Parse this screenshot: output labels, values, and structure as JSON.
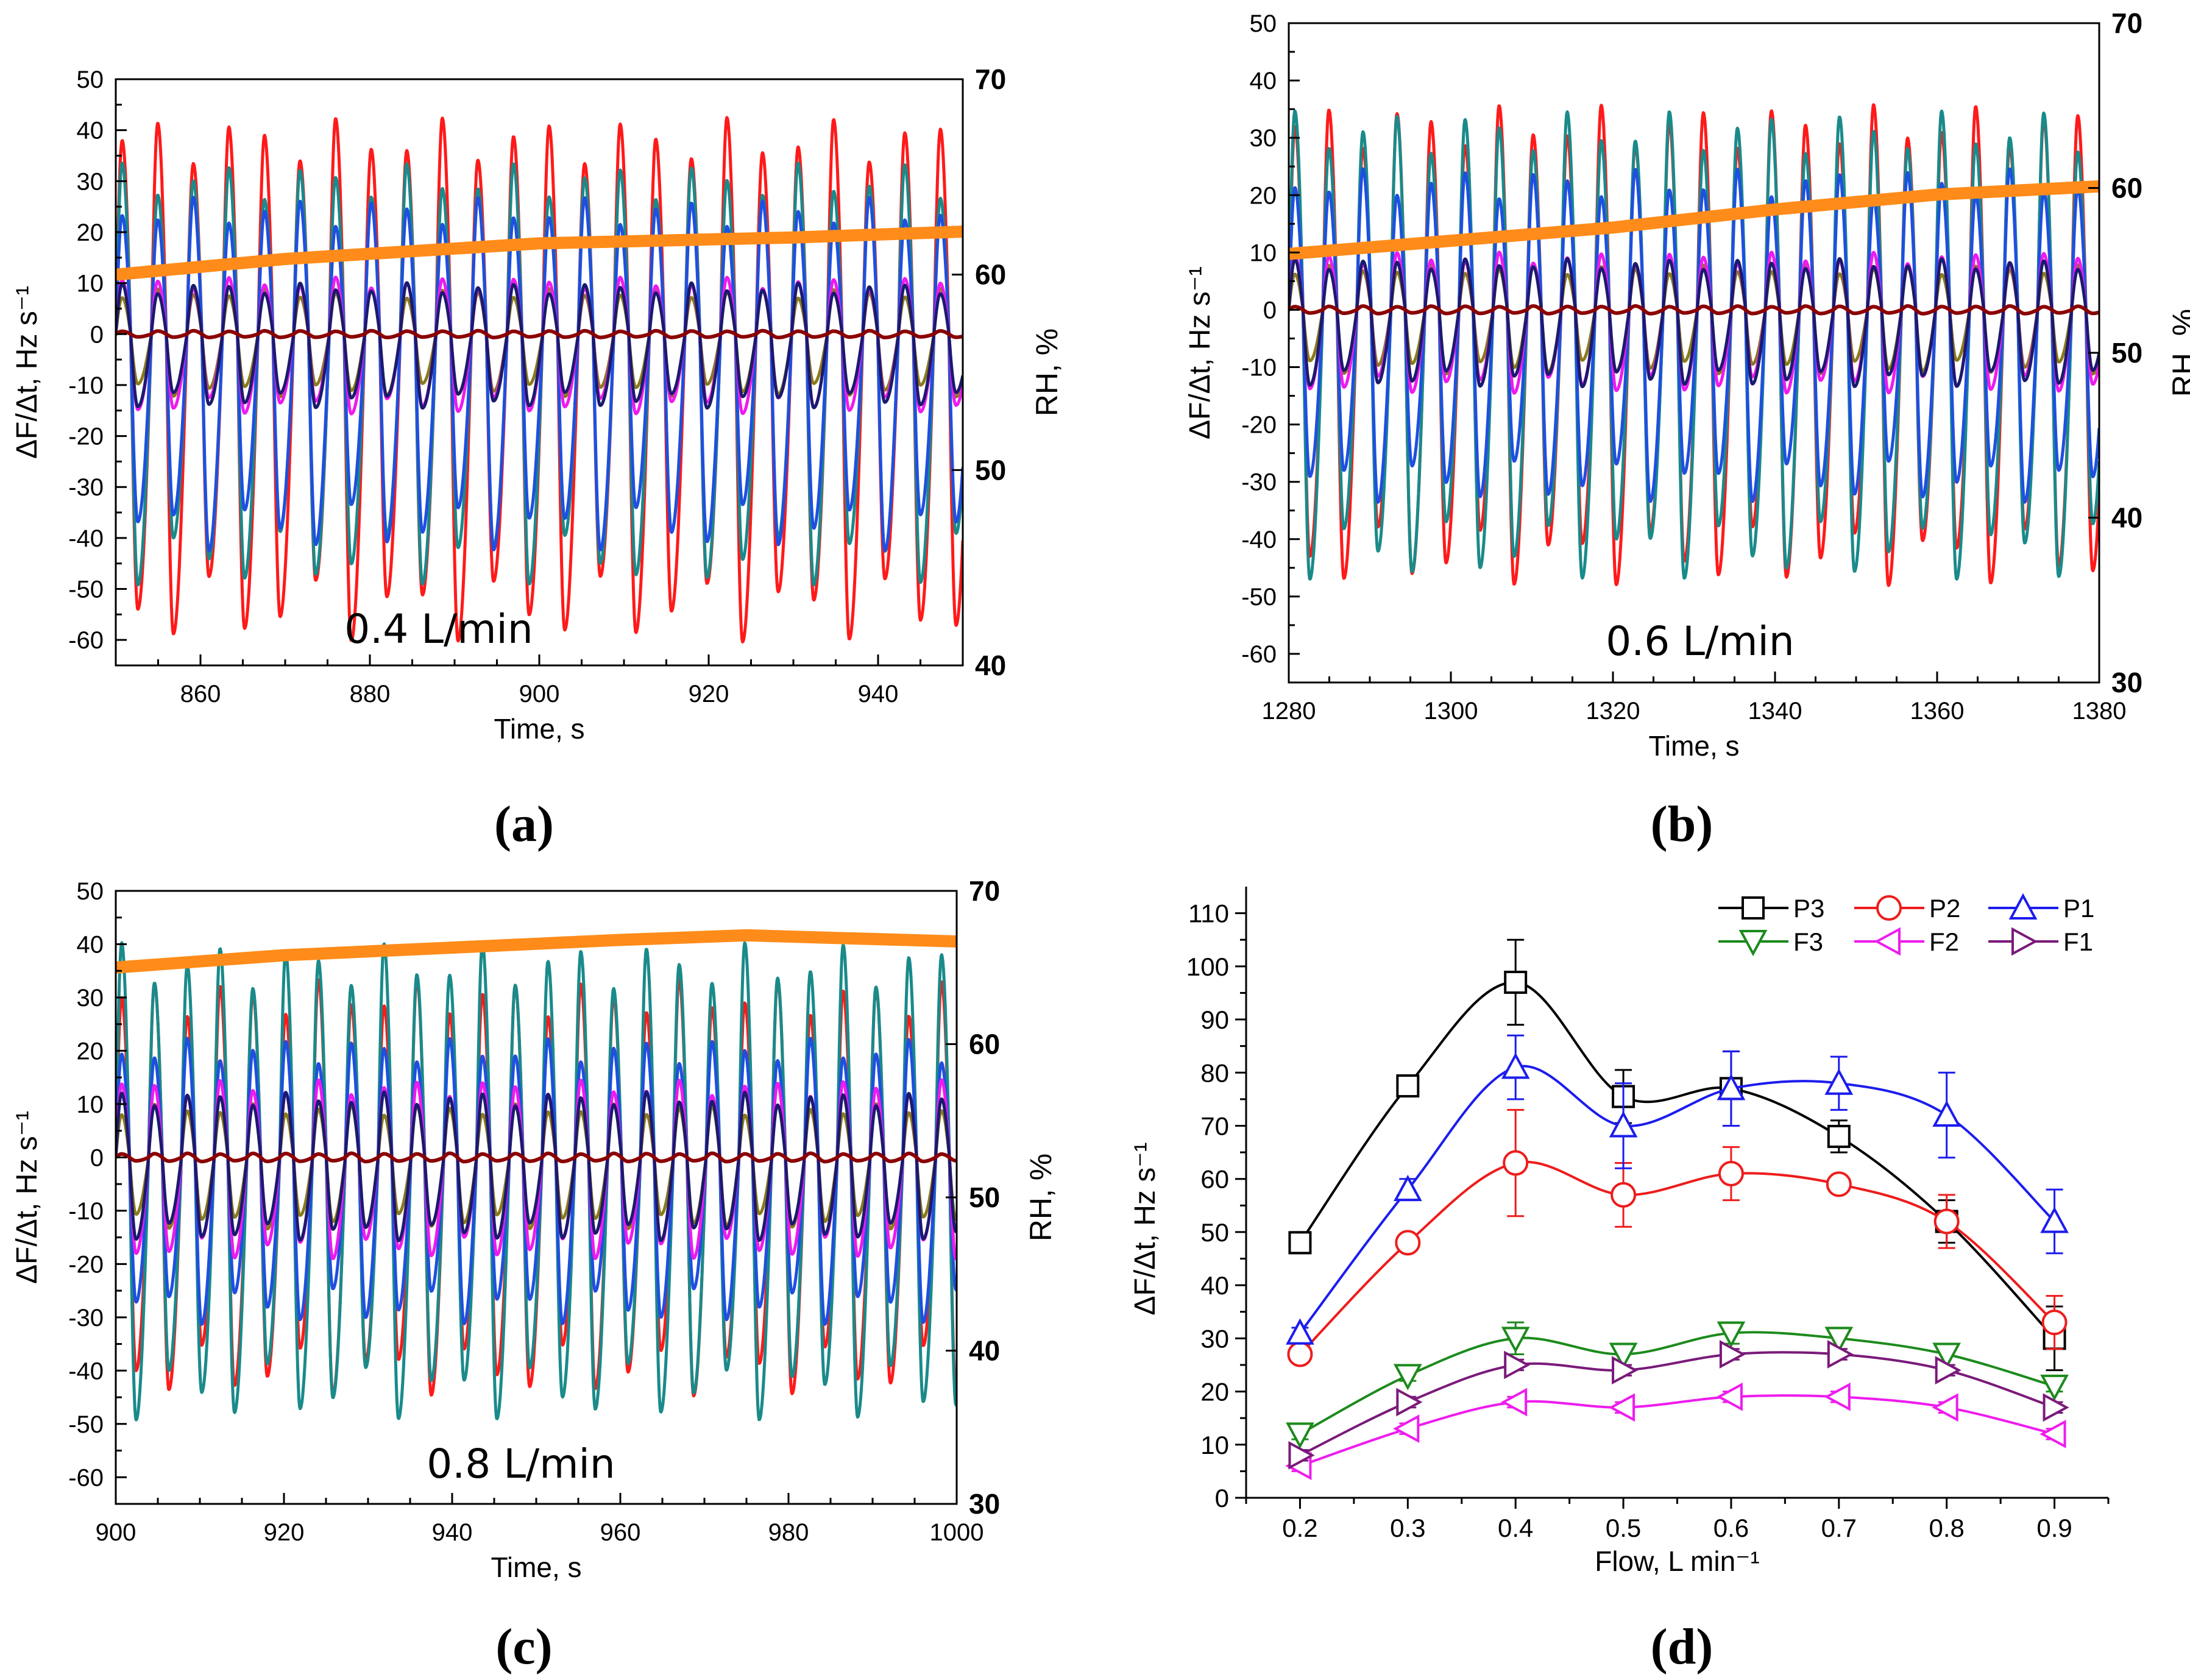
{
  "chart_data": [
    {
      "panel": "a",
      "type": "line",
      "panel_label": "(a)",
      "annotation": "0.4 L/min",
      "xlabel": "Time, s",
      "ylabel": "ΔF/Δt, Hz s⁻¹",
      "y2label": "RH, %",
      "xlim": [
        850,
        950
      ],
      "ylim": [
        -65,
        50
      ],
      "y2lim": [
        40,
        70
      ],
      "xticks": [
        "860",
        "880",
        "900",
        "920",
        "940"
      ],
      "yticks": [
        "50",
        "40",
        "30",
        "20",
        "10",
        "0",
        "-10",
        "-20",
        "-30",
        "-40",
        "-50",
        "-60"
      ],
      "y2ticks": [
        "70",
        "60",
        "50",
        "40"
      ],
      "oscillation_period_s": 4.2,
      "series": [
        {
          "name": "red",
          "color": "#ff1a1a",
          "peak": 38,
          "trough": -54
        },
        {
          "name": "teal",
          "color": "#1a8a8a",
          "peak": 30,
          "trough": -44
        },
        {
          "name": "blue",
          "color": "#1f4fe0",
          "peak": 24,
          "trough": -38
        },
        {
          "name": "olive",
          "color": "#8a7a1a",
          "peak": 8,
          "trough": -11
        },
        {
          "name": "magenta",
          "color": "#ee1aee",
          "peak": 10,
          "trough": -14
        },
        {
          "name": "navy",
          "color": "#1a1a6e",
          "peak": 9,
          "trough": -13
        },
        {
          "name": "maroon",
          "color": "#8b0000",
          "peak": 0.6,
          "trough": -0.6
        },
        {
          "name": "RH",
          "color": "#ff8c1a",
          "axis": "right",
          "x": [
            850,
            870,
            900,
            930,
            950
          ],
          "y": [
            60,
            60.8,
            61.6,
            61.9,
            62.2
          ]
        }
      ]
    },
    {
      "panel": "b",
      "type": "line",
      "panel_label": "(b)",
      "annotation": "0.6 L/min",
      "xlabel": "Time, s",
      "ylabel": "ΔF/Δt, Hz s⁻¹",
      "y2label": "RH, %",
      "xlim": [
        1280,
        1380
      ],
      "ylim": [
        -65,
        50
      ],
      "y2lim": [
        30,
        70
      ],
      "xticks": [
        "1280",
        "1300",
        "1320",
        "1340",
        "1360",
        "1380"
      ],
      "yticks": [
        "50",
        "40",
        "30",
        "20",
        "10",
        "0",
        "-10",
        "-20",
        "-30",
        "-40",
        "-50",
        "-60"
      ],
      "y2ticks": [
        "70",
        "60",
        "50",
        "40",
        "30"
      ],
      "oscillation_period_s": 4.2,
      "series": [
        {
          "name": "red",
          "color": "#ff1a1a",
          "peak": 32,
          "trough": -43
        },
        {
          "name": "teal",
          "color": "#1a8a8a",
          "peak": 31,
          "trough": -42
        },
        {
          "name": "blue",
          "color": "#1f4fe0",
          "peak": 22,
          "trough": -30
        },
        {
          "name": "olive",
          "color": "#8a7a1a",
          "peak": 7,
          "trough": -10
        },
        {
          "name": "magenta",
          "color": "#ee1aee",
          "peak": 9,
          "trough": -13
        },
        {
          "name": "navy",
          "color": "#1a1a6e",
          "peak": 8,
          "trough": -12
        },
        {
          "name": "maroon",
          "color": "#8b0000",
          "peak": 0.6,
          "trough": -0.6
        },
        {
          "name": "RH",
          "color": "#ff8c1a",
          "axis": "right",
          "x": [
            1280,
            1300,
            1320,
            1340,
            1360,
            1380
          ],
          "y": [
            56,
            56.8,
            57.6,
            58.7,
            59.6,
            60.1
          ]
        }
      ]
    },
    {
      "panel": "c",
      "type": "line",
      "panel_label": "(c)",
      "annotation": "0.8 L/min",
      "xlabel": "Time, s",
      "ylabel": "ΔF/Δt, Hz s⁻¹",
      "y2label": "RH, %",
      "xlim": [
        900,
        1000
      ],
      "ylim": [
        -65,
        50
      ],
      "y2lim": [
        30,
        70
      ],
      "xticks": [
        "900",
        "920",
        "940",
        "960",
        "980",
        "1000"
      ],
      "yticks": [
        "50",
        "40",
        "30",
        "20",
        "10",
        "0",
        "-10",
        "-20",
        "-30",
        "-40",
        "-50",
        "-60"
      ],
      "y2ticks": [
        "70",
        "60",
        "50",
        "40",
        "30"
      ],
      "oscillation_period_s": 3.9,
      "series": [
        {
          "name": "red",
          "color": "#ff1a1a",
          "peak": 30,
          "trough": -40
        },
        {
          "name": "teal",
          "color": "#1a8a8a",
          "peak": 36,
          "trough": -44
        },
        {
          "name": "blue",
          "color": "#1f4fe0",
          "peak": 20,
          "trough": -28
        },
        {
          "name": "olive",
          "color": "#8a7a1a",
          "peak": 9,
          "trough": -12
        },
        {
          "name": "magenta",
          "color": "#ee1aee",
          "peak": 13,
          "trough": -17
        },
        {
          "name": "navy",
          "color": "#1a1a6e",
          "peak": 11,
          "trough": -14
        },
        {
          "name": "maroon",
          "color": "#8b0000",
          "peak": 0.7,
          "trough": -0.7
        },
        {
          "name": "RH",
          "color": "#ff8c1a",
          "axis": "right",
          "x": [
            900,
            920,
            940,
            960,
            975,
            1000
          ],
          "y": [
            65,
            65.8,
            66.3,
            66.8,
            67.1,
            66.7
          ]
        }
      ]
    },
    {
      "panel": "d",
      "type": "line",
      "panel_label": "(d)",
      "xlabel": "Flow, L min⁻¹",
      "ylabel": "ΔF/Δt, Hz s⁻¹",
      "xlim": [
        0.15,
        0.95
      ],
      "ylim": [
        0,
        115
      ],
      "xticks": [
        "0.2",
        "0.3",
        "0.4",
        "0.5",
        "0.6",
        "0.7",
        "0.8",
        "0.9"
      ],
      "yticks": [
        "0",
        "10",
        "20",
        "30",
        "40",
        "50",
        "60",
        "70",
        "80",
        "90",
        "100",
        "110"
      ],
      "x": [
        0.2,
        0.3,
        0.4,
        0.5,
        0.6,
        0.7,
        0.8,
        0.9
      ],
      "series": [
        {
          "name": "P3",
          "color": "#000000",
          "marker": "square",
          "values": [
            48,
            77.5,
            97,
            75.5,
            77,
            68,
            52,
            30
          ],
          "errors": [
            2,
            2,
            8,
            5,
            7,
            3,
            4,
            6
          ]
        },
        {
          "name": "P2",
          "color": "#ee1c1c",
          "marker": "circle",
          "values": [
            27,
            48,
            63,
            57,
            61,
            59,
            52,
            33
          ],
          "errors": [
            1,
            1,
            10,
            6,
            5,
            1,
            5,
            5
          ]
        },
        {
          "name": "P1",
          "color": "#1c1cee",
          "marker": "triangle-up",
          "values": [
            31,
            58,
            81,
            70,
            77,
            78,
            72,
            52
          ],
          "errors": [
            1,
            2,
            6,
            8,
            7,
            5,
            8,
            6
          ]
        },
        {
          "name": "F3",
          "color": "#1c8a1c",
          "marker": "triangle-down",
          "values": [
            12,
            23,
            30,
            27,
            31,
            30,
            27,
            21
          ],
          "errors": [
            1,
            1,
            3,
            2,
            2,
            2,
            2,
            1
          ]
        },
        {
          "name": "F2",
          "color": "#ee1cee",
          "marker": "triangle-left",
          "values": [
            6,
            13,
            18,
            17,
            19,
            19,
            17,
            12
          ],
          "errors": [
            1,
            1,
            1,
            1,
            1,
            1,
            1,
            1
          ]
        },
        {
          "name": "F1",
          "color": "#7a1a7a",
          "marker": "triangle-right",
          "values": [
            8,
            18,
            25,
            24,
            27,
            27,
            24,
            17
          ],
          "errors": [
            1,
            1,
            1,
            1,
            1,
            1,
            1,
            1
          ]
        }
      ]
    }
  ]
}
